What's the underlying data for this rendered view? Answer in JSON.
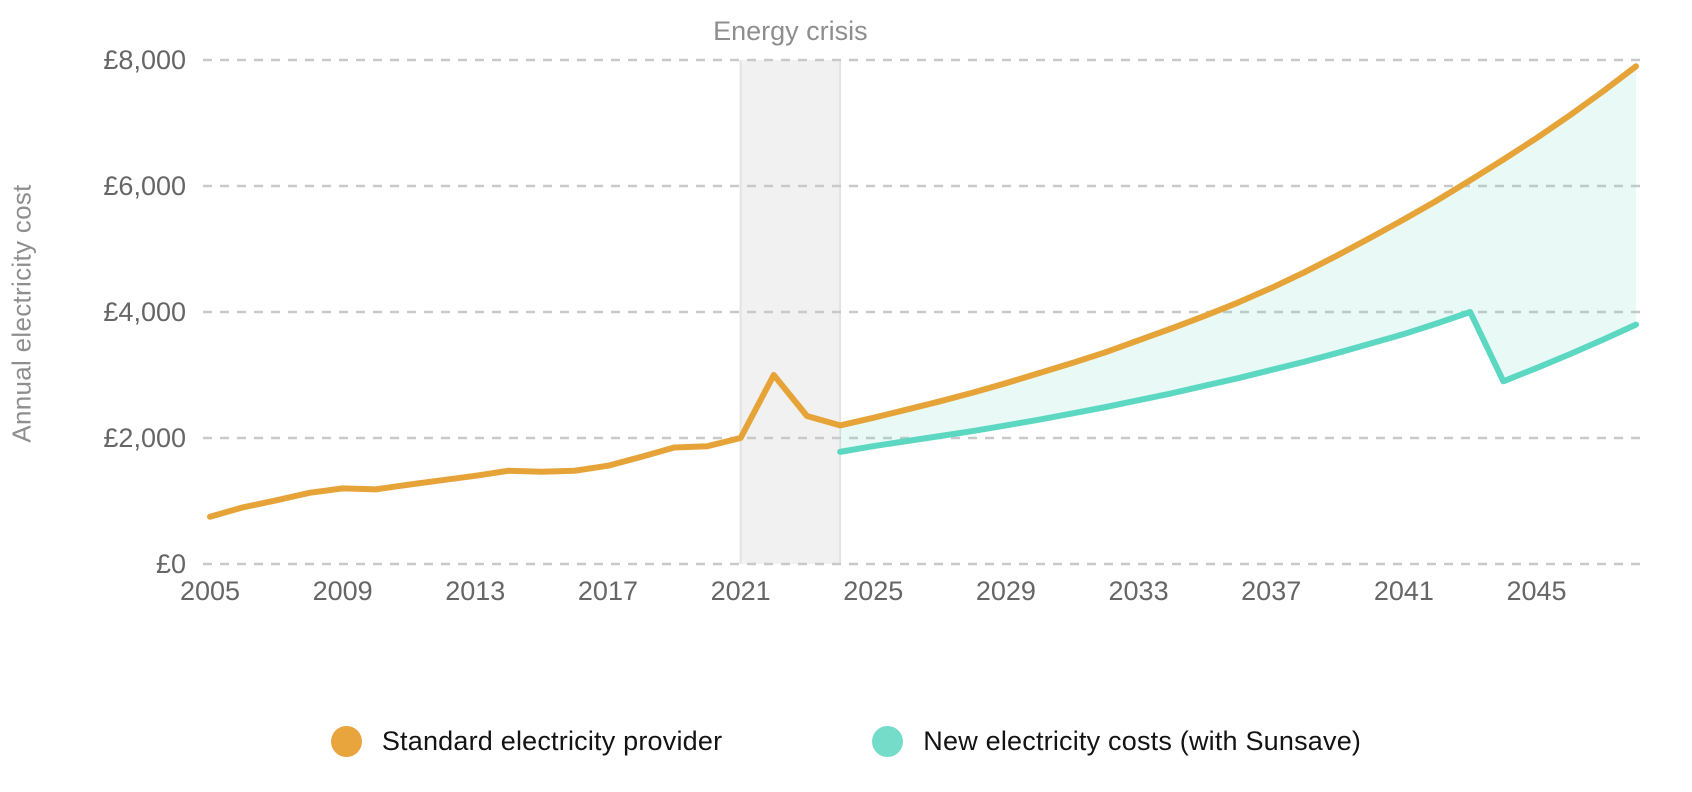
{
  "chart_data": {
    "type": "line",
    "ylabel": "Annual electricity cost",
    "x_domain": [
      2005,
      2048
    ],
    "y_domain": [
      0,
      8000
    ],
    "grid": "dashed-horizontal",
    "legend_position": "bottom-center",
    "x_ticks": [
      "2005",
      "2009",
      "2013",
      "2017",
      "2021",
      "2025",
      "2029",
      "2033",
      "2037",
      "2041",
      "2045"
    ],
    "x_tick_years": [
      2005,
      2009,
      2013,
      2017,
      2021,
      2025,
      2029,
      2033,
      2037,
      2041,
      2045
    ],
    "y_ticks": [
      {
        "value": 0,
        "label": "£0"
      },
      {
        "value": 2000,
        "label": "£2,000"
      },
      {
        "value": 4000,
        "label": "£4,000"
      },
      {
        "value": 6000,
        "label": "£6,000"
      },
      {
        "value": 8000,
        "label": "£8,000"
      }
    ],
    "annotation_band": {
      "label": "Energy crisis",
      "from_year": 2021,
      "to_year": 2024,
      "fill": "#f1f1f1",
      "border": "#e3e3e3",
      "label_color": "#8e8e8e"
    },
    "series": [
      {
        "name": "Standard electricity provider",
        "color": "#e6a438",
        "points": [
          [
            2005,
            750
          ],
          [
            2006,
            900
          ],
          [
            2007,
            1010
          ],
          [
            2008,
            1130
          ],
          [
            2009,
            1200
          ],
          [
            2010,
            1185
          ],
          [
            2011,
            1260
          ],
          [
            2012,
            1330
          ],
          [
            2013,
            1400
          ],
          [
            2014,
            1480
          ],
          [
            2015,
            1465
          ],
          [
            2016,
            1480
          ],
          [
            2017,
            1560
          ],
          [
            2018,
            1700
          ],
          [
            2019,
            1850
          ],
          [
            2020,
            1870
          ],
          [
            2021,
            2000
          ],
          [
            2022,
            3000
          ],
          [
            2023,
            2350
          ],
          [
            2024,
            2200
          ],
          [
            2025,
            2320
          ],
          [
            2026,
            2450
          ],
          [
            2027,
            2580
          ],
          [
            2028,
            2720
          ],
          [
            2029,
            2870
          ],
          [
            2030,
            3030
          ],
          [
            2031,
            3190
          ],
          [
            2032,
            3360
          ],
          [
            2033,
            3550
          ],
          [
            2034,
            3740
          ],
          [
            2035,
            3940
          ],
          [
            2036,
            4150
          ],
          [
            2037,
            4380
          ],
          [
            2038,
            4630
          ],
          [
            2039,
            4900
          ],
          [
            2040,
            5180
          ],
          [
            2041,
            5470
          ],
          [
            2042,
            5770
          ],
          [
            2043,
            6090
          ],
          [
            2044,
            6420
          ],
          [
            2045,
            6760
          ],
          [
            2046,
            7120
          ],
          [
            2047,
            7500
          ],
          [
            2048,
            7900
          ]
        ]
      },
      {
        "name": "New electricity costs (with Sunsave)",
        "color": "#5cd8c2",
        "points": [
          [
            2024,
            1780
          ],
          [
            2025,
            1870
          ],
          [
            2026,
            1950
          ],
          [
            2027,
            2030
          ],
          [
            2028,
            2110
          ],
          [
            2029,
            2200
          ],
          [
            2030,
            2290
          ],
          [
            2031,
            2390
          ],
          [
            2032,
            2490
          ],
          [
            2033,
            2600
          ],
          [
            2034,
            2710
          ],
          [
            2035,
            2830
          ],
          [
            2036,
            2950
          ],
          [
            2037,
            3080
          ],
          [
            2038,
            3210
          ],
          [
            2039,
            3350
          ],
          [
            2040,
            3500
          ],
          [
            2041,
            3650
          ],
          [
            2042,
            3820
          ],
          [
            2043,
            4000
          ],
          [
            2044,
            2900
          ],
          [
            2045,
            3110
          ],
          [
            2046,
            3330
          ],
          [
            2047,
            3560
          ],
          [
            2048,
            3800
          ]
        ]
      }
    ],
    "fill_between": {
      "upper": "Standard electricity provider",
      "lower": "New electricity costs (with Sunsave)",
      "color": "rgba(99, 216, 194, 0.15)"
    },
    "gridline_color": "#c9c9c9",
    "tick_label_color": "#666666"
  },
  "legend": {
    "items": [
      {
        "label": "Standard electricity provider",
        "color": "#e8a43d"
      },
      {
        "label": "New electricity costs (with Sunsave)",
        "color": "#74dcc8"
      }
    ]
  }
}
